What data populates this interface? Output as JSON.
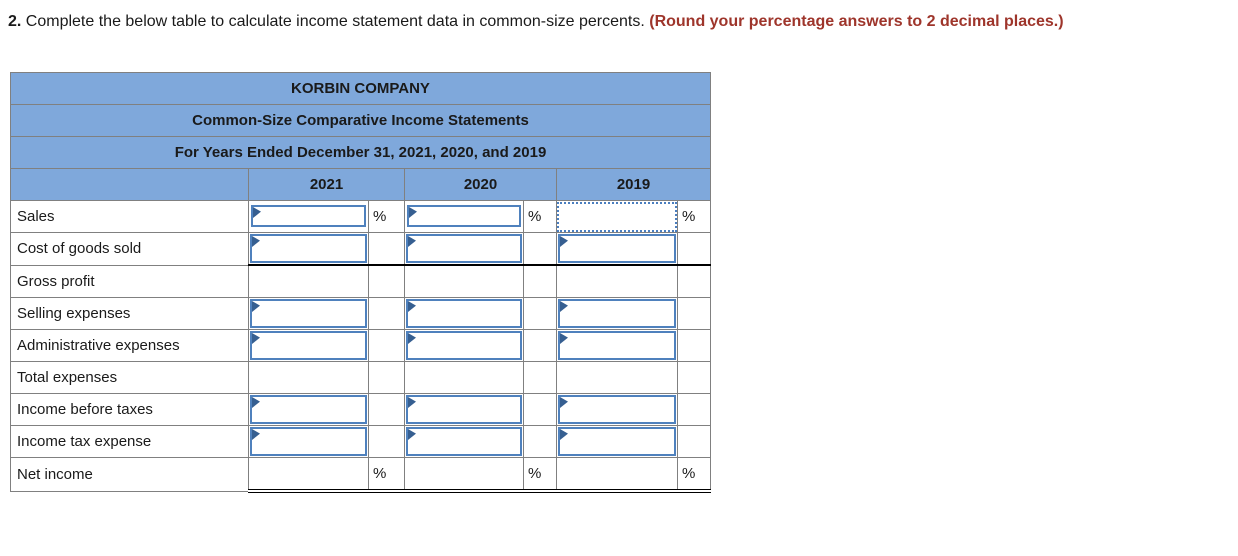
{
  "instruction": {
    "number": "2.",
    "text": "Complete the below table to calculate income statement data in common-size percents.",
    "emphasis": "(Round your percentage answers to 2 decimal places.)",
    "emphasis_color": "#9e352b"
  },
  "table": {
    "titles": [
      "KORBIN COMPANY",
      "Common-Size Comparative Income Statements",
      "For Years Ended December 31, 2021, 2020, and 2019"
    ],
    "year_columns": [
      "2021",
      "2020",
      "2019"
    ],
    "percent_symbol": "%",
    "header_bg": "#7fa8db",
    "input_border_color": "#4f81bd",
    "entry_flag_color": "#365f91",
    "focus_border_style": "dotted",
    "input_value": "",
    "rows": [
      {
        "id": "sales",
        "label": "Sales",
        "has_inputs": true,
        "short_boxes": true,
        "show_percent": true,
        "focused_year": "2019"
      },
      {
        "id": "cost-of-goods-sold",
        "label": "Cost of goods sold",
        "has_inputs": true,
        "rule": "single"
      },
      {
        "id": "gross-profit",
        "label": "Gross profit"
      },
      {
        "id": "selling-expenses",
        "label": "Selling expenses",
        "has_inputs": true
      },
      {
        "id": "administrative-expenses",
        "label": "Administrative expenses",
        "has_inputs": true
      },
      {
        "id": "total-expenses",
        "label": "Total expenses"
      },
      {
        "id": "income-before-taxes",
        "label": "Income before taxes",
        "has_inputs": true
      },
      {
        "id": "income-tax-expense",
        "label": "Income tax expense",
        "has_inputs": true
      },
      {
        "id": "net-income",
        "label": "Net income",
        "show_percent": true,
        "rule": "double"
      }
    ]
  }
}
